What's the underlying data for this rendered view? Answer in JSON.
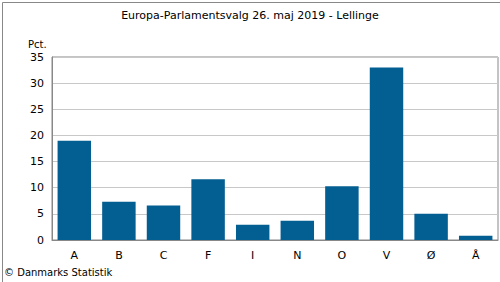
{
  "chart_data": {
    "type": "bar",
    "title": "Europa-Parlamentsvalg 26. maj 2019 - Lellinge",
    "y_label": "Pct.",
    "source": "© Danmarks Statistik",
    "categories": [
      "A",
      "B",
      "C",
      "F",
      "I",
      "N",
      "O",
      "V",
      "Ø",
      "Å"
    ],
    "values": [
      19.0,
      7.3,
      6.6,
      11.6,
      2.9,
      3.7,
      10.3,
      33.0,
      5.0,
      0.8
    ],
    "color": "#035e91",
    "ylim": [
      0,
      35
    ],
    "yticks": [
      0,
      5,
      10,
      15,
      20,
      25,
      30,
      35
    ],
    "grid": true
  }
}
